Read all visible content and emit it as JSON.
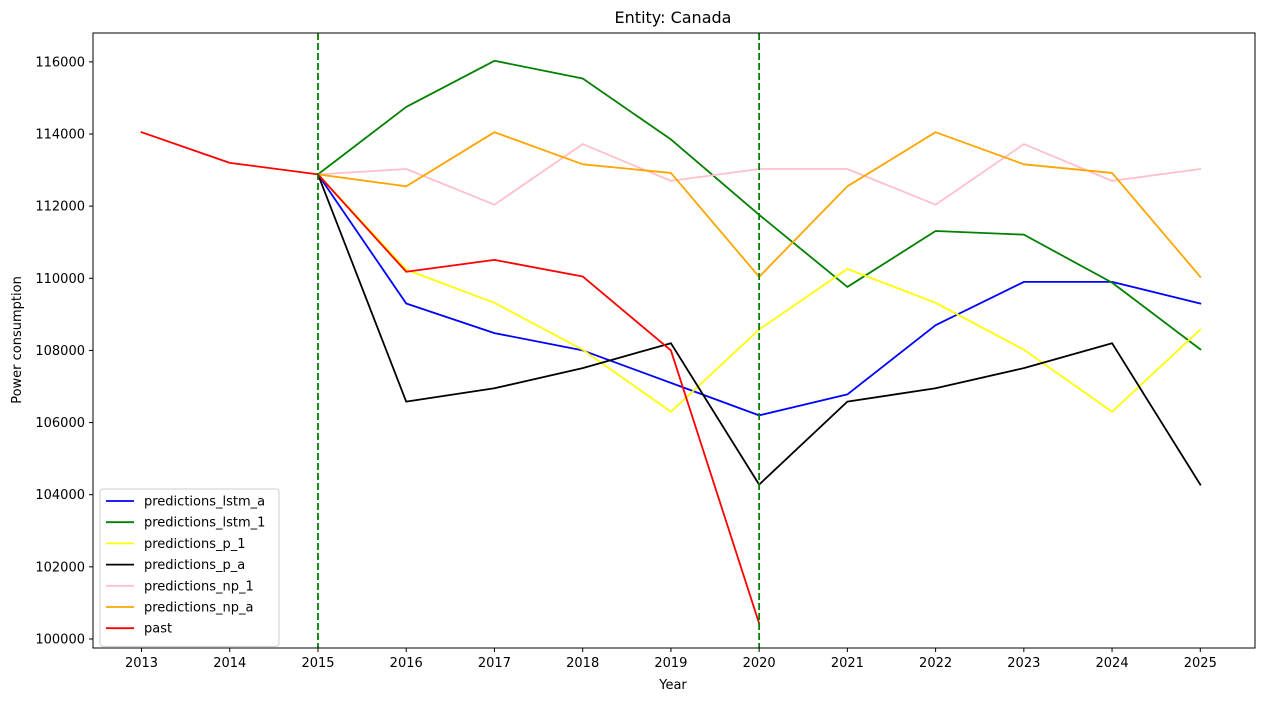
{
  "chart_data": {
    "type": "line",
    "title": "Entity: Canada",
    "xlabel": "Year",
    "ylabel": "Power consumption",
    "xlim": [
      2012.45,
      2025.62
    ],
    "ylim": [
      99750,
      116800
    ],
    "xticks": [
      2013,
      2014,
      2015,
      2016,
      2017,
      2018,
      2019,
      2020,
      2021,
      2022,
      2023,
      2024,
      2025
    ],
    "yticks": [
      100000,
      102000,
      104000,
      106000,
      108000,
      110000,
      112000,
      114000,
      116000
    ],
    "grid": false,
    "legend_position": "lower-left",
    "vlines": [
      {
        "x": 2015,
        "color": "#008000",
        "style": "dashed"
      },
      {
        "x": 2020,
        "color": "#008000",
        "style": "dashed"
      }
    ],
    "series": [
      {
        "name": "predictions_lstm_a",
        "color": "#0000ff",
        "x": [
          2015,
          2016,
          2017,
          2018,
          2019,
          2020,
          2021,
          2022,
          2023,
          2024,
          2025
        ],
        "y": [
          112880,
          109300,
          108480,
          108000,
          107100,
          106200,
          106780,
          108700,
          109900,
          109900,
          109300
        ]
      },
      {
        "name": "predictions_lstm_1",
        "color": "#008000",
        "x": [
          2015,
          2016,
          2017,
          2018,
          2019,
          2020,
          2021,
          2022,
          2023,
          2024,
          2025
        ],
        "y": [
          112880,
          114750,
          116030,
          115540,
          113850,
          111760,
          109760,
          111310,
          111210,
          109880,
          108030
        ]
      },
      {
        "name": "predictions_p_1",
        "color": "#ffff00",
        "x": [
          2015,
          2016,
          2017,
          2018,
          2019,
          2020,
          2021,
          2022,
          2023,
          2024,
          2025
        ],
        "y": [
          112880,
          110240,
          109320,
          108020,
          106300,
          108580,
          110260,
          109320,
          108020,
          106300,
          108580
        ]
      },
      {
        "name": "predictions_p_a",
        "color": "#000000",
        "x": [
          2015,
          2016,
          2017,
          2018,
          2019,
          2020,
          2021,
          2022,
          2023,
          2024,
          2025
        ],
        "y": [
          112880,
          106580,
          106950,
          107510,
          108200,
          104280,
          106580,
          106950,
          107510,
          108200,
          104280
        ]
      },
      {
        "name": "predictions_np_1",
        "color": "#ffc0cb",
        "x": [
          2015,
          2016,
          2017,
          2018,
          2019,
          2020,
          2021,
          2022,
          2023,
          2024,
          2025
        ],
        "y": [
          112880,
          113030,
          112040,
          113720,
          112700,
          113030,
          113030,
          112040,
          113720,
          112700,
          113030
        ]
      },
      {
        "name": "predictions_np_a",
        "color": "#ffa500",
        "x": [
          2015,
          2016,
          2017,
          2018,
          2019,
          2020,
          2021,
          2022,
          2023,
          2024,
          2025
        ],
        "y": [
          112880,
          112550,
          114050,
          113160,
          112920,
          110040,
          112550,
          114050,
          113160,
          112920,
          110040
        ]
      },
      {
        "name": "past",
        "color": "#ff0000",
        "x": [
          2013,
          2014,
          2015,
          2016,
          2017,
          2018,
          2019,
          2020
        ],
        "y": [
          114050,
          113200,
          112880,
          110180,
          110510,
          110050,
          108000,
          100430
        ]
      }
    ]
  }
}
